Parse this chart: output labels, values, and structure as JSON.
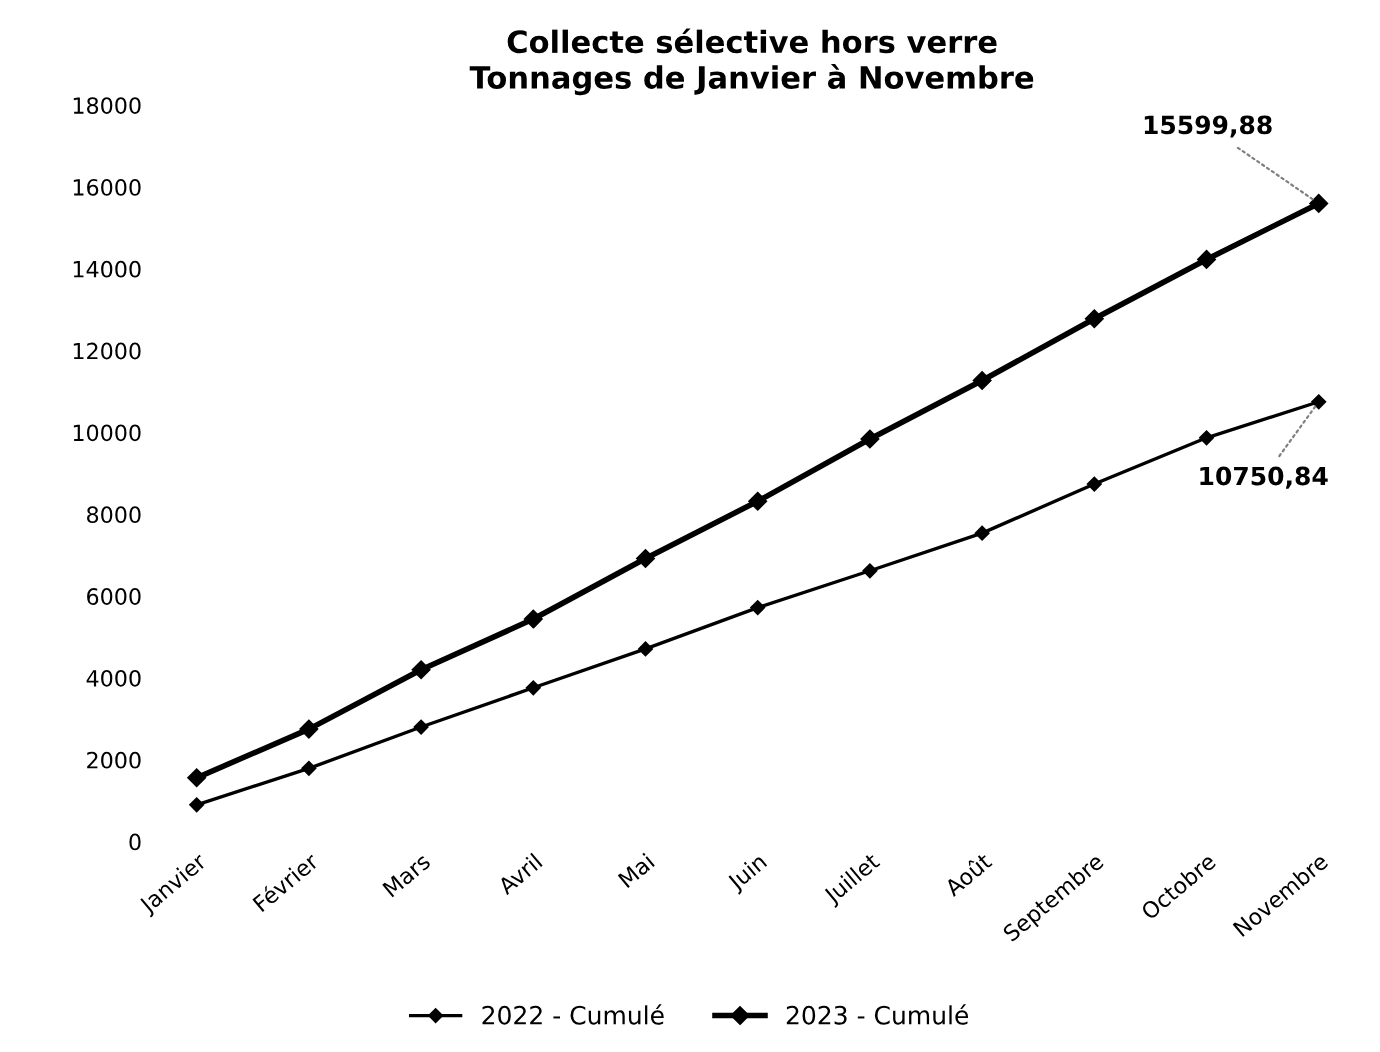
{
  "chart_data": {
    "type": "line",
    "title": "Collecte sélective hors verre\nTonnages de Janvier à Novembre",
    "categories": [
      "Janvier",
      "Février",
      "Mars",
      "Avril",
      "Mai",
      "Juin",
      "Juillet",
      "Août",
      "Septembre",
      "Octobre",
      "Novembre"
    ],
    "series": [
      {
        "name": "2022 - Cumulé",
        "color": "#000000",
        "values": [
          900,
          1790,
          2800,
          3760,
          4710,
          5720,
          6620,
          7540,
          8740,
          9870,
          10750.84
        ]
      },
      {
        "name": "2023 - Cumulé",
        "color": "#000000",
        "values": [
          1560,
          2750,
          4200,
          5440,
          6920,
          8320,
          9840,
          11270,
          12780,
          14230,
          15599.88
        ]
      }
    ],
    "ylim": [
      0,
      18000
    ],
    "yticks": [
      0,
      2000,
      4000,
      6000,
      8000,
      10000,
      12000,
      14000,
      16000,
      18000
    ],
    "annotations": [
      {
        "text": "15599,88",
        "x": "Novembre",
        "y": 15599.88
      },
      {
        "text": "10750,84",
        "x": "Novembre",
        "y": 10750.84
      }
    ],
    "marker": "diamond",
    "line_style": "solid",
    "grid": false,
    "legend": "bottom"
  }
}
